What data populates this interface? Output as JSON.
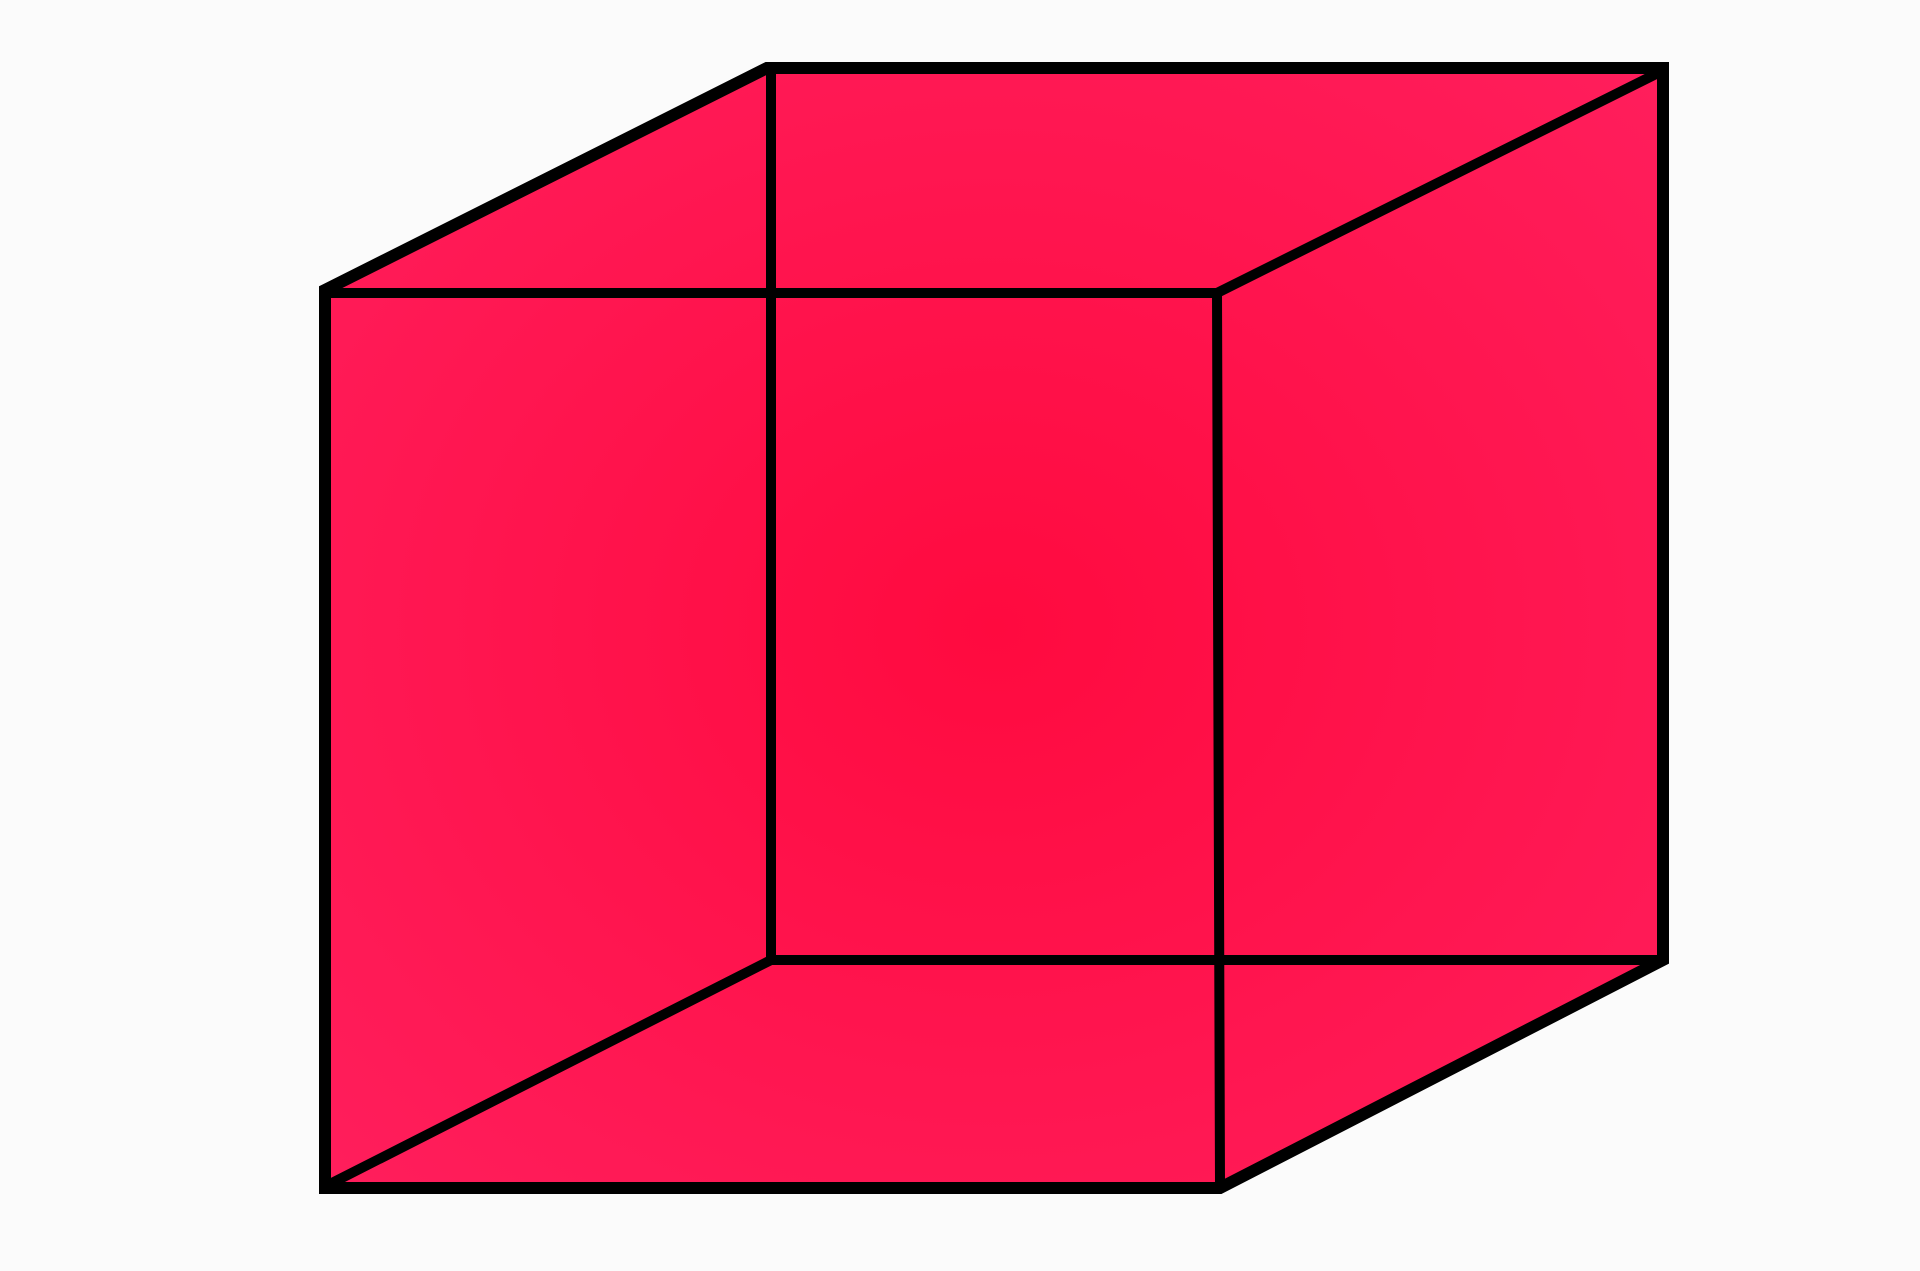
{
  "figure": {
    "shape": "necker-cube",
    "style": "wireframe-cube-filled",
    "colors": {
      "background": "#fbfbfb",
      "fill": "#ff0a3f",
      "fill_highlight": "#ff1e5c",
      "edge": "#000000"
    }
  }
}
